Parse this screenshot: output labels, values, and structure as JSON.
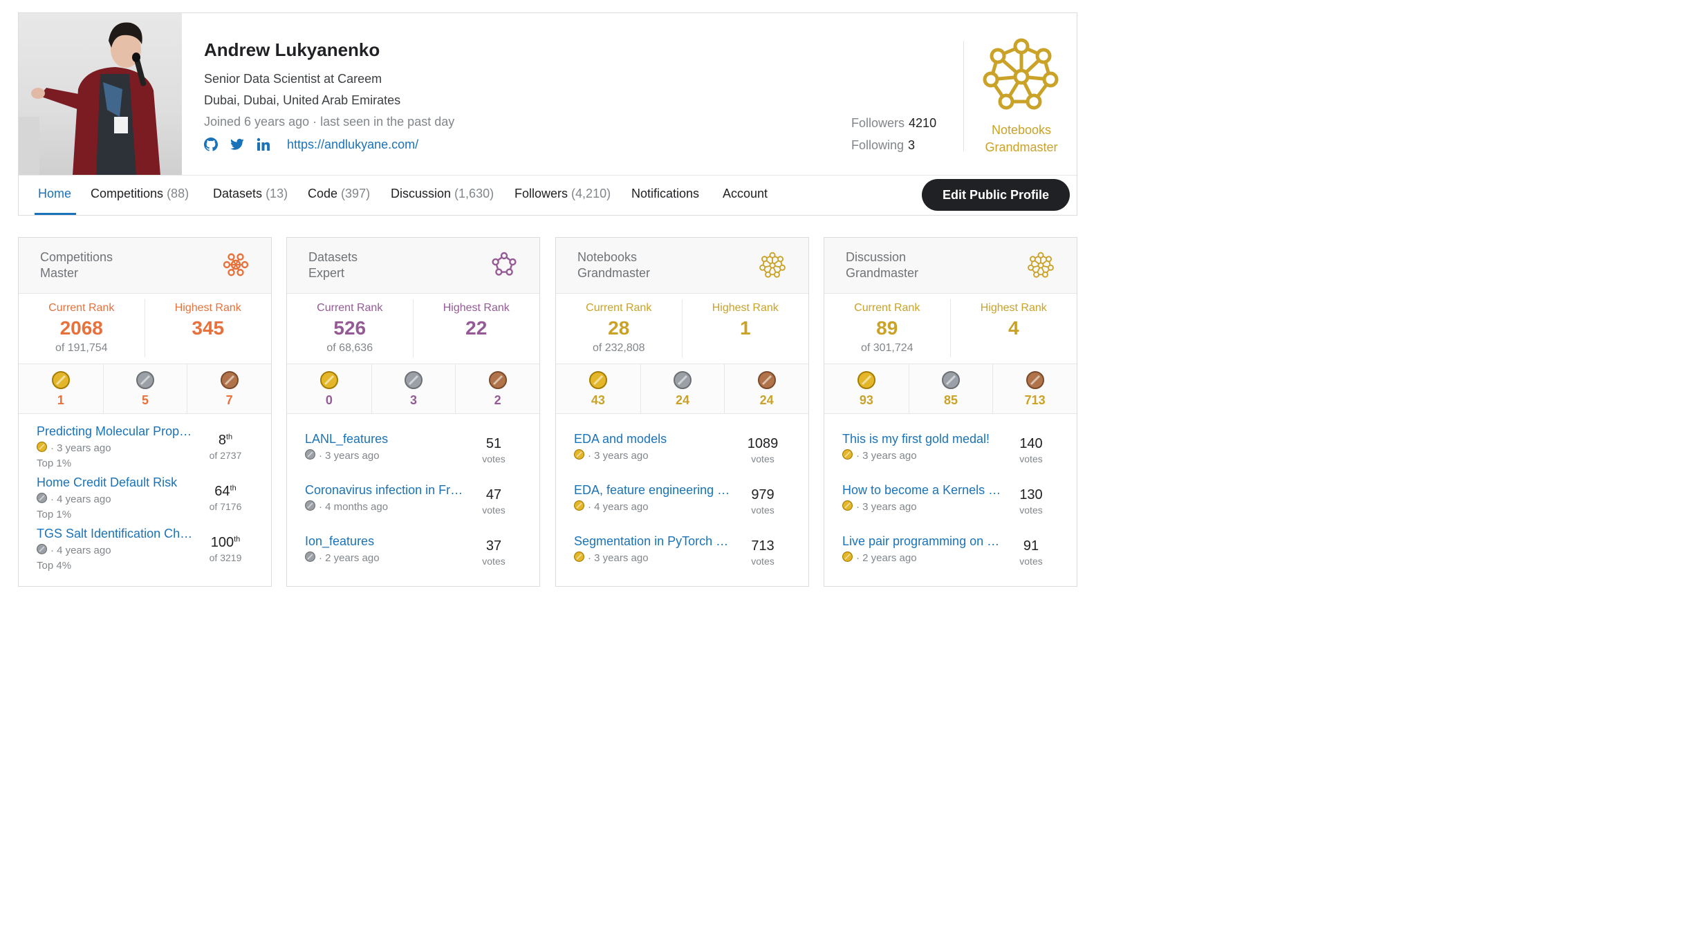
{
  "profile": {
    "name": "Andrew Lukyanenko",
    "occupation": "Senior Data Scientist at Careem",
    "location": "Dubai, Dubai, United Arab Emirates",
    "joined": "Joined 6 years ago · last seen in the past day",
    "website": "https://andlukyane.com/",
    "social_icons": [
      "github-icon",
      "twitter-icon",
      "linkedin-icon"
    ],
    "followers_label": "Followers",
    "followers_value": "4210",
    "following_label": "Following",
    "following_value": "3",
    "tier_line1": "Notebooks",
    "tier_line2": "Grandmaster"
  },
  "tabs": [
    {
      "label": "Home",
      "count": "",
      "active": true
    },
    {
      "label": "Competitions",
      "count": "(88)"
    },
    {
      "label": "Datasets",
      "count": "(13)"
    },
    {
      "label": "Code",
      "count": "(397)"
    },
    {
      "label": "Discussion",
      "count": "(1,630)"
    },
    {
      "label": "Followers",
      "count": "(4,210)"
    },
    {
      "label": "Notifications",
      "count": ""
    },
    {
      "label": "Account",
      "count": ""
    }
  ],
  "edit_button": "Edit Public Profile",
  "colors": {
    "competitions": "#e8703a",
    "datasets": "#955a96",
    "notebooks": "#c9a227",
    "discussion": "#c9a227",
    "link": "#1a73b8",
    "gold": "#e4b62a",
    "silver": "#9aa0a6",
    "bronze": "#b0734a"
  },
  "cards": [
    {
      "tier_line1": "Competitions",
      "tier_line2": "Master",
      "current_label": "Current Rank",
      "current_value": "2068",
      "of": "of 191,754",
      "highest_label": "Highest Rank",
      "highest_value": "345",
      "medals": [
        "1",
        "5",
        "7"
      ],
      "items": [
        {
          "title": "Predicting Molecular Properties",
          "medal": "gold",
          "age": "· 3 years ago",
          "top": "Top 1%",
          "num": "8",
          "sup": "th",
          "sub": "of 2737"
        },
        {
          "title": "Home Credit Default Risk",
          "medal": "silver",
          "age": "· 4 years ago",
          "top": "Top 1%",
          "num": "64",
          "sup": "th",
          "sub": "of 7176"
        },
        {
          "title": "TGS Salt Identification Challenge",
          "medal": "silver",
          "age": "· 4 years ago",
          "top": "Top 4%",
          "num": "100",
          "sup": "th",
          "sub": "of 3219"
        }
      ]
    },
    {
      "tier_line1": "Datasets",
      "tier_line2": "Expert",
      "current_label": "Current Rank",
      "current_value": "526",
      "of": "of 68,636",
      "highest_label": "Highest Rank",
      "highest_value": "22",
      "medals": [
        "0",
        "3",
        "2"
      ],
      "items": [
        {
          "title": "LANL_features",
          "medal": "silver",
          "age": "· 3 years ago",
          "top": "",
          "num": "51",
          "sup": "",
          "sub": "votes"
        },
        {
          "title": "Coronavirus infection in France",
          "medal": "silver",
          "age": "· 4 months ago",
          "top": "",
          "num": "47",
          "sup": "",
          "sub": "votes"
        },
        {
          "title": "Ion_features",
          "medal": "silver",
          "age": "· 2 years ago",
          "top": "",
          "num": "37",
          "sup": "",
          "sub": "votes"
        }
      ]
    },
    {
      "tier_line1": "Notebooks",
      "tier_line2": "Grandmaster",
      "current_label": "Current Rank",
      "current_value": "28",
      "of": "of 232,808",
      "highest_label": "Highest Rank",
      "highest_value": "1",
      "medals": [
        "43",
        "24",
        "24"
      ],
      "items": [
        {
          "title": "EDA and models",
          "medal": "gold",
          "age": "· 3 years ago",
          "top": "",
          "num": "1089",
          "sup": "",
          "sub": "votes"
        },
        {
          "title": "EDA, feature engineering and everything",
          "medal": "gold",
          "age": "· 4 years ago",
          "top": "",
          "num": "979",
          "sup": "",
          "sub": "votes"
        },
        {
          "title": "Segmentation in PyTorch using convenient tools",
          "medal": "gold",
          "age": "· 3 years ago",
          "top": "",
          "num": "713",
          "sup": "",
          "sub": "votes"
        }
      ]
    },
    {
      "tier_line1": "Discussion",
      "tier_line2": "Grandmaster",
      "current_label": "Current Rank",
      "current_value": "89",
      "of": "of 301,724",
      "highest_label": "Highest Rank",
      "highest_value": "4",
      "medals": [
        "93",
        "85",
        "713"
      ],
      "items": [
        {
          "title": "This is my first gold medal!",
          "medal": "gold",
          "age": "· 3 years ago",
          "top": "",
          "num": "140",
          "sup": "",
          "sub": "votes"
        },
        {
          "title": "How to become a Kernels Grandmaster",
          "medal": "gold",
          "age": "· 3 years ago",
          "top": "",
          "num": "130",
          "sup": "",
          "sub": "votes"
        },
        {
          "title": "Live pair programming on Kaggle",
          "medal": "gold",
          "age": "· 2 years ago",
          "top": "",
          "num": "91",
          "sup": "",
          "sub": "votes"
        }
      ]
    }
  ]
}
